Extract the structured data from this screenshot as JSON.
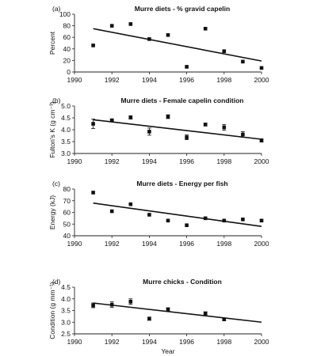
{
  "figure": {
    "xlabel": "Year"
  },
  "chart_data": [
    {
      "type": "scatter",
      "panel": "(a)",
      "title": "Murre diets - % gravid capelin",
      "ylabel": "Percent",
      "xlabel": "",
      "xlim": [
        1990,
        2000
      ],
      "ylim": [
        0,
        100
      ],
      "xticks": [
        1990,
        1992,
        1994,
        1996,
        1998,
        2000
      ],
      "yticks": [
        0,
        20,
        40,
        60,
        80,
        100
      ],
      "x": [
        1991,
        1992,
        1993,
        1994,
        1995,
        1996,
        1997,
        1998,
        1999,
        2000
      ],
      "y": [
        46,
        80,
        83,
        57,
        64,
        9,
        75,
        36,
        18,
        7
      ],
      "error": [
        0,
        0,
        0,
        0,
        0,
        0,
        0,
        0,
        0,
        0
      ],
      "trend": {
        "x": [
          1991,
          2000
        ],
        "y": [
          75,
          19
        ]
      },
      "grid": false
    },
    {
      "type": "scatter",
      "panel": "(b)",
      "title": "Murre diets - Female capelin condition",
      "ylabel": "Fulton's K (g cm⁻³)",
      "xlabel": "",
      "xlim": [
        1990,
        2000
      ],
      "ylim": [
        3.0,
        5.0
      ],
      "xticks": [
        1990,
        1992,
        1994,
        1996,
        1998,
        2000
      ],
      "yticks": [
        "3.0",
        "3.5",
        "4.0",
        "4.5",
        "5.0"
      ],
      "x": [
        1991,
        1992,
        1993,
        1994,
        1995,
        1996,
        1997,
        1998,
        1999,
        2000
      ],
      "y": [
        4.25,
        4.4,
        4.52,
        3.92,
        4.55,
        3.68,
        4.22,
        4.1,
        3.8,
        3.55
      ],
      "error": [
        0.2,
        0.03,
        0.07,
        0.15,
        0.08,
        0.1,
        0.06,
        0.12,
        0.12,
        0.07
      ],
      "trend": {
        "x": [
          1991,
          2000
        ],
        "y": [
          4.42,
          3.6
        ]
      },
      "grid": false
    },
    {
      "type": "scatter",
      "panel": "(c)",
      "title": "Murre diets - Energy per fish",
      "ylabel": "Energy (kJ)",
      "xlabel": "",
      "xlim": [
        1990,
        2000
      ],
      "ylim": [
        40,
        80
      ],
      "xticks": [
        1990,
        1992,
        1994,
        1996,
        1998,
        2000
      ],
      "yticks": [
        40,
        50,
        60,
        70,
        80
      ],
      "x": [
        1991,
        1992,
        1993,
        1994,
        1995,
        1996,
        1997,
        1998,
        1999,
        2000
      ],
      "y": [
        77,
        61,
        67,
        58,
        53,
        49,
        55,
        53,
        54,
        53
      ],
      "error": [
        0,
        0,
        0,
        0,
        0,
        0,
        0,
        0,
        0,
        0
      ],
      "trend": {
        "x": [
          1991,
          2000
        ],
        "y": [
          68,
          48
        ]
      },
      "grid": false
    },
    {
      "type": "scatter",
      "panel": "(d)",
      "title": "Murre chicks - Condition",
      "ylabel": "Condition (g mm⁻¹)",
      "xlabel": "Year",
      "xlim": [
        1990,
        2000
      ],
      "ylim": [
        2.5,
        4.5
      ],
      "xticks": [
        1990,
        1992,
        1994,
        1996,
        1998,
        2000
      ],
      "yticks": [
        "2.5",
        "3.0",
        "3.5",
        "4.0",
        "4.5"
      ],
      "x": [
        1991,
        1992,
        1993,
        1994,
        1995,
        1997,
        1998
      ],
      "y": [
        3.72,
        3.75,
        3.88,
        3.15,
        3.55,
        3.38,
        3.12
      ],
      "error": [
        0.1,
        0.12,
        0.12,
        0.07,
        0.07,
        0.06,
        0.05
      ],
      "trend": {
        "x": [
          1991,
          2000
        ],
        "y": [
          3.82,
          3.0
        ]
      },
      "grid": false
    }
  ]
}
